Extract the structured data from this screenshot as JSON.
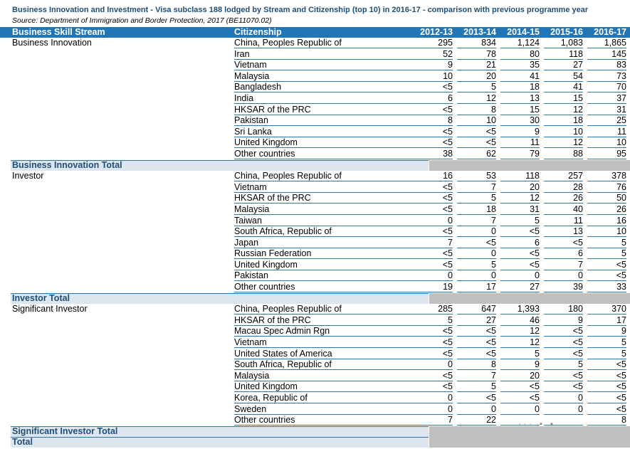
{
  "title": "Business Innovation and Investment - Visa subclass 188 lodged by Stream and Citizenship (top 10) in 2016-17 - comparison with previous programme year",
  "source": "Source: Department of Immigration and Border Protection, 2017 (BE11070.02)",
  "header": {
    "stream": "Business Skill Stream",
    "citizenship": "Citizenship",
    "years": [
      "2012-13",
      "2013-14",
      "2014-15",
      "2015-16",
      "2016-17"
    ]
  },
  "groups": [
    {
      "stream": "Business Innovation",
      "total_label": "Business Innovation Total",
      "rows": [
        {
          "c": "China, Peoples Republic of",
          "v": [
            "295",
            "834",
            "1,124",
            "1,083",
            "1,865"
          ]
        },
        {
          "c": "Iran",
          "v": [
            "52",
            "78",
            "80",
            "118",
            "145"
          ]
        },
        {
          "c": "Vietnam",
          "v": [
            "9",
            "21",
            "35",
            "27",
            "83"
          ]
        },
        {
          "c": "Malaysia",
          "v": [
            "10",
            "20",
            "41",
            "54",
            "73"
          ]
        },
        {
          "c": "Bangladesh",
          "v": [
            "<5",
            "5",
            "18",
            "41",
            "70"
          ]
        },
        {
          "c": "India",
          "v": [
            "6",
            "12",
            "13",
            "15",
            "37"
          ]
        },
        {
          "c": "HKSAR of the PRC",
          "v": [
            "<5",
            "8",
            "15",
            "12",
            "31"
          ]
        },
        {
          "c": "Pakistan",
          "v": [
            "8",
            "10",
            "30",
            "18",
            "25"
          ]
        },
        {
          "c": "Sri Lanka",
          "v": [
            "<5",
            "<5",
            "9",
            "10",
            "11"
          ]
        },
        {
          "c": "United Kingdom",
          "v": [
            "<5",
            "<5",
            "11",
            "12",
            "10"
          ]
        },
        {
          "c": "Other countries",
          "v": [
            "38",
            "62",
            "79",
            "88",
            "95"
          ]
        }
      ]
    },
    {
      "stream": "Investor",
      "total_label": "Investor Total",
      "rows": [
        {
          "c": "China, Peoples Republic of",
          "v": [
            "16",
            "53",
            "118",
            "257",
            "378"
          ]
        },
        {
          "c": "Vietnam",
          "v": [
            "<5",
            "7",
            "20",
            "28",
            "76"
          ]
        },
        {
          "c": "HKSAR of the PRC",
          "v": [
            "<5",
            "5",
            "12",
            "26",
            "50"
          ]
        },
        {
          "c": "Malaysia",
          "v": [
            "<5",
            "18",
            "31",
            "40",
            "26"
          ]
        },
        {
          "c": "Taiwan",
          "v": [
            "0",
            "7",
            "5",
            "11",
            "16"
          ]
        },
        {
          "c": "South Africa, Republic of",
          "v": [
            "<5",
            "0",
            "<5",
            "13",
            "10"
          ]
        },
        {
          "c": "Japan",
          "v": [
            "7",
            "<5",
            "6",
            "<5",
            "5"
          ]
        },
        {
          "c": "Russian Federation",
          "v": [
            "<5",
            "0",
            "<5",
            "6",
            "5"
          ]
        },
        {
          "c": "United Kingdom",
          "v": [
            "<5",
            "5",
            "<5",
            "7",
            "<5"
          ]
        },
        {
          "c": "Pakistan",
          "v": [
            "0",
            "0",
            "0",
            "0",
            "<5"
          ]
        },
        {
          "c": "Other countries",
          "v": [
            "19",
            "17",
            "27",
            "39",
            "33"
          ]
        }
      ]
    },
    {
      "stream": "Significant Investor",
      "total_label": "Significant Investor Total",
      "rows": [
        {
          "c": "China, Peoples Republic of",
          "v": [
            "285",
            "647",
            "1,393",
            "180",
            "370"
          ]
        },
        {
          "c": "HKSAR of the PRC",
          "v": [
            "5",
            "27",
            "46",
            "9",
            "17"
          ]
        },
        {
          "c": "Macau Spec Admin Rgn",
          "v": [
            "<5",
            "<5",
            "12",
            "<5",
            "9"
          ]
        },
        {
          "c": "Vietnam",
          "v": [
            "<5",
            "<5",
            "12",
            "<5",
            "5"
          ]
        },
        {
          "c": "United States of America",
          "v": [
            "<5",
            "<5",
            "5",
            "<5",
            "5"
          ]
        },
        {
          "c": "South Africa, Republic of",
          "v": [
            "0",
            "8",
            "9",
            "5",
            "<5"
          ]
        },
        {
          "c": "Malaysia",
          "v": [
            "<5",
            "7",
            "20",
            "<5",
            "<5"
          ]
        },
        {
          "c": "United Kingdom",
          "v": [
            "<5",
            "5",
            "<5",
            "<5",
            "<5"
          ]
        },
        {
          "c": "Korea, Republic of",
          "v": [
            "0",
            "<5",
            "<5",
            "0",
            "<5"
          ]
        },
        {
          "c": "Sweden",
          "v": [
            "0",
            "0",
            "0",
            "0",
            "<5"
          ]
        },
        {
          "c": "Other countries",
          "v": [
            "7",
            "22",
            "",
            "",
            "8"
          ]
        }
      ]
    }
  ],
  "grand_total_label": "Total"
}
